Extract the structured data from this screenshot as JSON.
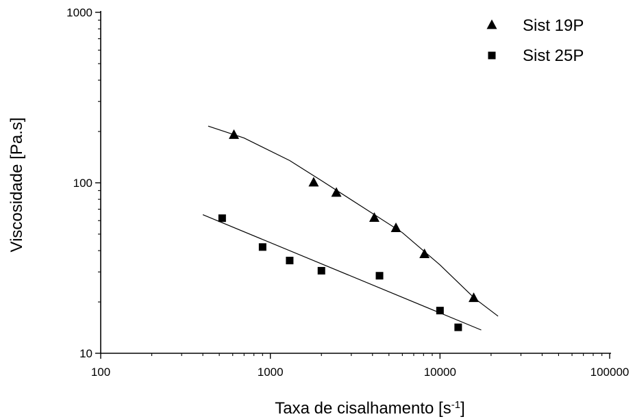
{
  "chart_data": {
    "type": "scatter",
    "xscale": "log",
    "yscale": "log",
    "xlim": [
      100,
      100000
    ],
    "ylim": [
      10,
      1000
    ],
    "x_ticks": [
      "100",
      "1000",
      "10000",
      "100000"
    ],
    "y_ticks": [
      "10",
      "100",
      "1000"
    ],
    "xlabel": {
      "main": "Taxa de cisalhamento [s",
      "sup": "-1",
      "end": "]"
    },
    "ylabel": "Viscosidade [Pa.s]",
    "legend_position": "top-right",
    "series": [
      {
        "name": "Sist 19P",
        "marker": "triangle",
        "color": "#000000",
        "points": [
          {
            "x": 610,
            "y": 190
          },
          {
            "x": 1800,
            "y": 100
          },
          {
            "x": 2450,
            "y": 87
          },
          {
            "x": 4100,
            "y": 62
          },
          {
            "x": 5500,
            "y": 54
          },
          {
            "x": 8100,
            "y": 38
          },
          {
            "x": 15800,
            "y": 21
          }
        ],
        "fit": [
          {
            "x": 430,
            "y": 215
          },
          {
            "x": 700,
            "y": 183
          },
          {
            "x": 1300,
            "y": 135
          },
          {
            "x": 2000,
            "y": 103
          },
          {
            "x": 3500,
            "y": 72
          },
          {
            "x": 6000,
            "y": 51
          },
          {
            "x": 10000,
            "y": 33
          },
          {
            "x": 16000,
            "y": 21
          },
          {
            "x": 22000,
            "y": 16.5
          }
        ]
      },
      {
        "name": "Sist 25P",
        "marker": "square",
        "color": "#000000",
        "points": [
          {
            "x": 520,
            "y": 62
          },
          {
            "x": 900,
            "y": 42
          },
          {
            "x": 1300,
            "y": 35
          },
          {
            "x": 2000,
            "y": 30.5
          },
          {
            "x": 4400,
            "y": 28.5
          },
          {
            "x": 10000,
            "y": 17.8
          },
          {
            "x": 12800,
            "y": 14.2
          }
        ],
        "fit": [
          {
            "x": 400,
            "y": 65
          },
          {
            "x": 17500,
            "y": 13.7
          }
        ]
      }
    ]
  }
}
